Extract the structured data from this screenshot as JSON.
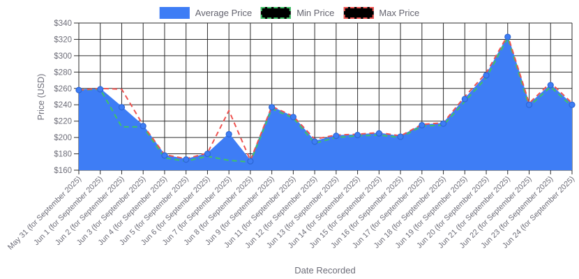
{
  "legend": {
    "average_label": "Average Price",
    "min_label": "Min Price",
    "max_label": "Max Price"
  },
  "colors": {
    "average": "#3E7DF5",
    "average_marker_stroke": "#2C66D4",
    "min": "#3FC266",
    "max": "#EF5350",
    "grid": "#2B2B2B",
    "axis_text": "#6D6D78",
    "legend_text": "#63636E",
    "swatch_fill": "#000000",
    "background": "#FFFFFF"
  },
  "chart_data": {
    "type": "area",
    "title": "",
    "xlabel": "Date Recorded",
    "ylabel": "Price (USD)",
    "ylim": [
      160,
      340
    ],
    "ytick_step": 20,
    "ytick_prefix": "$",
    "grid": true,
    "legend_position": "top",
    "categories": [
      "May 31 (for September 2025)",
      "Jun 1 (for September 2025)",
      "Jun 2 (for September 2025)",
      "Jun 3 (for September 2025)",
      "Jun 4 (for September 2025)",
      "Jun 5 (for September 2025)",
      "Jun 6 (for September 2025)",
      "Jun 7 (for September 2025)",
      "Jun 8 (for September 2025)",
      "Jun 9 (for September 2025)",
      "Jun 11 (for September 2025)",
      "Jun 12 (for September 2025)",
      "Jun 13 (for September 2025)",
      "Jun 14 (for September 2025)",
      "Jun 15 (for September 2025)",
      "Jun 16 (for September 2025)",
      "Jun 17 (for September 2025)",
      "Jun 18 (for September 2025)",
      "Jun 19 (for September 2025)",
      "Jun 20 (for September 2025)",
      "Jun 21 (for September 2025)",
      "Jun 22 (for September 2025)",
      "Jun 23 (for September 2025)",
      "Jun 24 (for September 2025)"
    ],
    "series": [
      {
        "name": "Average Price",
        "style": "filled-area-with-markers",
        "values": [
          258,
          259,
          237,
          214,
          178,
          173,
          180,
          204,
          171,
          237,
          225,
          195,
          202,
          203,
          205,
          201,
          215,
          217,
          247,
          276,
          323,
          240,
          264,
          240
        ]
      },
      {
        "name": "Min Price",
        "style": "dashed-line",
        "values": [
          258,
          259,
          213,
          213,
          175,
          171,
          177,
          172,
          170,
          235,
          224,
          193,
          200,
          202,
          203,
          200,
          214,
          215,
          244,
          273,
          322,
          238,
          262,
          238
        ]
      },
      {
        "name": "Max Price",
        "style": "dashed-line",
        "values": [
          258,
          260,
          259,
          215,
          179,
          174,
          181,
          233,
          172,
          238,
          226,
          198,
          203,
          204,
          206,
          202,
          216,
          218,
          250,
          279,
          325,
          242,
          267,
          242
        ]
      }
    ]
  }
}
